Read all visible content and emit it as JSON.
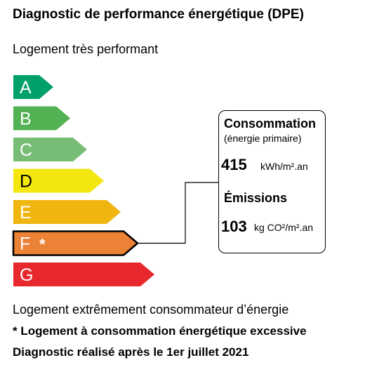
{
  "title": "Diagnostic de performance énergétique (DPE)",
  "top_label": "Logement très performant",
  "bottom_label": "Logement extrêmement consommateur d’énergie",
  "footnote": "* Logement à consommation énergétique excessive",
  "date_note": "Diagnostic réalisé après le 1er juillet 2021",
  "classes": [
    {
      "letter": "A",
      "color": "#00a06d",
      "text_color": "#ffffff"
    },
    {
      "letter": "B",
      "color": "#52b153",
      "text_color": "#ffffff"
    },
    {
      "letter": "C",
      "color": "#78bd76",
      "text_color": "#ffffff"
    },
    {
      "letter": "D",
      "color": "#f4e70f",
      "text_color": "#000000"
    },
    {
      "letter": "E",
      "color": "#f0b50f",
      "text_color": "#ffffff"
    },
    {
      "letter": "F",
      "color": "#eb8235",
      "text_color": "#ffffff"
    },
    {
      "letter": "G",
      "color": "#e7292d",
      "text_color": "#ffffff"
    }
  ],
  "selected_class": "F",
  "selected_marker": "*",
  "consumption": {
    "title": "Consommation",
    "subtitle": "(énergie primaire)",
    "value": "415",
    "unit": "kWh/m².an"
  },
  "emissions": {
    "title": "Émissions",
    "value": "103",
    "unit": "kg CO²/m².an"
  }
}
